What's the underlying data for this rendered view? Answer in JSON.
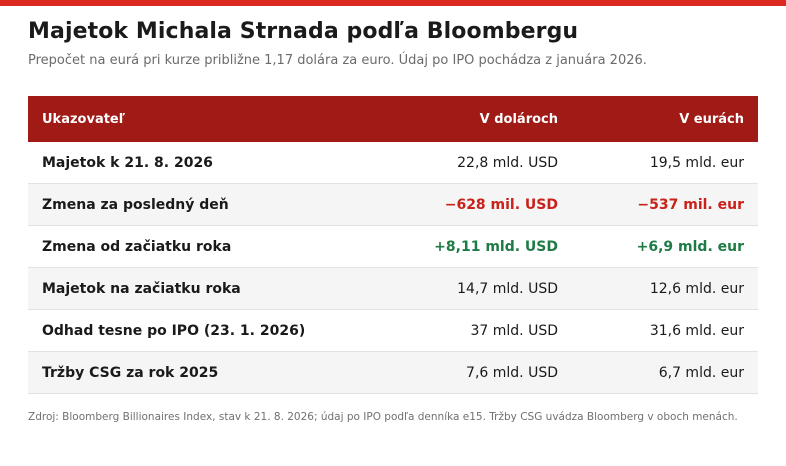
{
  "title": "Majetok Michala Strnada podľa Bloombergu",
  "subtitle": "Prepočet na eurá pri kurze približne 1,17 dolára za euro. Údaj po IPO pochádza z januára 2026.",
  "table": {
    "headers": [
      "Ukazovateľ",
      "V dolároch",
      "V eurách"
    ],
    "rows": [
      {
        "label": "Majetok k 21. 8. 2026",
        "usd": "22,8 mld. USD",
        "eur": "19,5 mld. eur",
        "tone": ""
      },
      {
        "label": "Zmena za posledný deň",
        "usd": "−628 mil. USD",
        "eur": "−537 mil. eur",
        "tone": "neg"
      },
      {
        "label": "Zmena od začiatku roka",
        "usd": "+8,11 mld. USD",
        "eur": "+6,9 mld. eur",
        "tone": "pos"
      },
      {
        "label": "Majetok na začiatku roka",
        "usd": "14,7 mld. USD",
        "eur": "12,6 mld. eur",
        "tone": ""
      },
      {
        "label": "Odhad tesne po IPO (23. 1. 2026)",
        "usd": "37 mld. USD",
        "eur": "31,6 mld. eur",
        "tone": ""
      },
      {
        "label": "Tržby CSG za rok 2025",
        "usd": "7,6 mld. USD",
        "eur": "6,7 mld. eur",
        "tone": ""
      }
    ]
  },
  "footer": "Zdroj: Bloomberg Billionaires Index, stav k 21. 8. 2026; údaj po IPO podľa denníka e15. Tržby CSG uvádza Bloomberg v oboch menách.",
  "colors": {
    "accent_bar": "#dc2a22",
    "header_bg": "#a01a16",
    "negative": "#c8221b",
    "positive": "#1e7b45"
  }
}
